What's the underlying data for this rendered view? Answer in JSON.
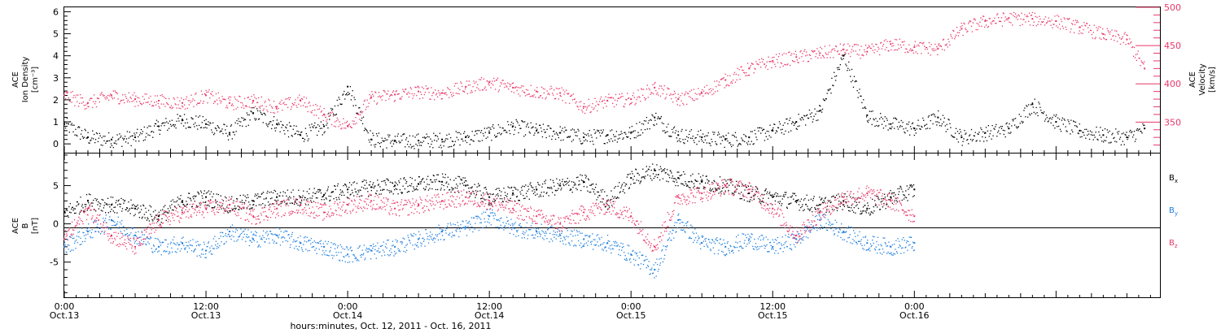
{
  "colors": {
    "black": "#000000",
    "blue": "#1f7fe0",
    "red": "#e8386a"
  },
  "chart_data": [
    {
      "type": "scatter",
      "panel": "top",
      "ylabel_lines": [
        "ACE",
        "Ion Density",
        "[cm⁻³]"
      ],
      "ylim": [
        -0.4,
        6.2
      ],
      "yticks": [
        0,
        1,
        2,
        3,
        4,
        5,
        6
      ],
      "y2label_lines": [
        "ACE",
        "Velocity",
        "[km/s]"
      ],
      "y2lim": [
        310,
        500
      ],
      "y2ticks": [
        350,
        400,
        450,
        500
      ],
      "xlim": [
        0,
        92.8
      ],
      "series": [
        {
          "color": "black",
          "axis": "left",
          "x": [
            0,
            2,
            4,
            6,
            8,
            10,
            12,
            14,
            16,
            18,
            20,
            22,
            24,
            26,
            28,
            30,
            32,
            34,
            36,
            38,
            40,
            42,
            44,
            46,
            48,
            50,
            52,
            54,
            56,
            58,
            60,
            62,
            64,
            66,
            68,
            70,
            72,
            74,
            76,
            78,
            80,
            82,
            84,
            86,
            88,
            90,
            91.5
          ],
          "y": [
            0.9,
            0.3,
            0.2,
            0.3,
            0.8,
            1.1,
            0.9,
            0.5,
            1.4,
            0.9,
            0.4,
            0.8,
            2.6,
            0.2,
            0.15,
            0.15,
            0.2,
            0.3,
            0.5,
            0.8,
            0.6,
            0.5,
            0.3,
            0.4,
            0.5,
            1.2,
            0.4,
            0.3,
            0.2,
            0.3,
            0.6,
            1.0,
            1.5,
            4.0,
            1.3,
            0.9,
            0.7,
            1.2,
            0.3,
            0.5,
            0.7,
            1.8,
            1.0,
            0.6,
            0.4,
            0.3,
            0.7
          ]
        },
        {
          "color": "red",
          "axis": "right",
          "x": [
            0,
            2,
            4,
            6,
            8,
            10,
            12,
            14,
            16,
            18,
            20,
            22,
            24,
            26,
            28,
            30,
            32,
            34,
            36,
            38,
            40,
            42,
            44,
            46,
            48,
            50,
            52,
            54,
            56,
            58,
            60,
            62,
            64,
            66,
            68,
            70,
            72,
            74,
            76,
            78,
            80,
            82,
            84,
            86,
            88,
            90,
            91.5
          ],
          "y": [
            385,
            375,
            385,
            380,
            378,
            375,
            385,
            375,
            378,
            370,
            378,
            360,
            345,
            382,
            386,
            390,
            388,
            396,
            402,
            395,
            390,
            388,
            370,
            378,
            380,
            395,
            380,
            388,
            405,
            420,
            430,
            435,
            440,
            445,
            442,
            452,
            448,
            446,
            472,
            482,
            486,
            485,
            482,
            474,
            465,
            458,
            420
          ]
        }
      ]
    },
    {
      "type": "scatter",
      "panel": "bottom",
      "ylabel_lines": [
        "ACE",
        "B",
        "[nT]"
      ],
      "ylim": [
        -9.6,
        9.2
      ],
      "yticks": [
        -5,
        0,
        5
      ],
      "xlim": [
        0,
        92.8
      ],
      "xticks": [
        {
          "x": 0,
          "lines": [
            "0:00",
            "Oct.13"
          ]
        },
        {
          "x": 12,
          "lines": [
            "12:00",
            "Oct.13"
          ]
        },
        {
          "x": 24,
          "lines": [
            "0:00",
            "Oct.14"
          ]
        },
        {
          "x": 36,
          "lines": [
            "12:00",
            "Oct.14"
          ]
        },
        {
          "x": 48,
          "lines": [
            "0:00",
            "Oct.15"
          ]
        },
        {
          "x": 60,
          "lines": [
            "12:00",
            "Oct.15"
          ]
        },
        {
          "x": 72,
          "lines": [
            "0:00",
            "Oct.16"
          ]
        }
      ],
      "xlabel": "hours:minutes, Oct. 12, 2011 - Oct. 16, 2011",
      "legend": [
        {
          "base": "B",
          "sub": "x",
          "color": "black"
        },
        {
          "base": "B",
          "sub": "y",
          "color": "blue"
        },
        {
          "base": "B",
          "sub": "z",
          "color": "red"
        }
      ],
      "series": [
        {
          "color": "black",
          "x": [
            0,
            2,
            4,
            6,
            8,
            10,
            12,
            14,
            16,
            18,
            20,
            22,
            24,
            26,
            28,
            30,
            32,
            34,
            36,
            38,
            40,
            42,
            44,
            46,
            48,
            50,
            52,
            54,
            56,
            58,
            60,
            62,
            64,
            66,
            68,
            70,
            72
          ],
          "y": [
            1.5,
            3.0,
            2.5,
            2.0,
            1.0,
            3.0,
            3.5,
            2.5,
            3.0,
            3.5,
            3.5,
            3.8,
            4.5,
            4.8,
            5.0,
            5.2,
            5.5,
            5.0,
            3.5,
            4.0,
            4.5,
            5.0,
            5.5,
            3.0,
            6.0,
            7.0,
            6.0,
            5.5,
            5.0,
            4.0,
            3.5,
            3.0,
            2.5,
            3.0,
            2.0,
            3.5,
            4.5
          ]
        },
        {
          "color": "blue",
          "x": [
            0,
            2,
            4,
            6,
            8,
            10,
            12,
            14,
            16,
            18,
            20,
            22,
            24,
            26,
            28,
            30,
            32,
            34,
            36,
            38,
            40,
            42,
            44,
            46,
            48,
            50,
            52,
            54,
            56,
            58,
            60,
            62,
            64,
            66,
            68,
            70,
            72
          ],
          "y": [
            -3.0,
            -1.0,
            0.5,
            -1.5,
            -3.0,
            -2.5,
            -3.5,
            -1.0,
            -2.0,
            -1.5,
            -2.5,
            -3.0,
            -4.0,
            -3.5,
            -3.0,
            -2.0,
            -1.0,
            -0.5,
            1.0,
            -0.5,
            -1.0,
            -1.5,
            -2.0,
            -2.5,
            -4.0,
            -6.0,
            0.5,
            -2.5,
            -3.0,
            -2.0,
            -3.0,
            -2.0,
            0.5,
            -1.0,
            -2.5,
            -3.0,
            -2.5
          ]
        },
        {
          "color": "red",
          "x": [
            0,
            2,
            4,
            6,
            8,
            10,
            12,
            14,
            16,
            18,
            20,
            22,
            24,
            26,
            28,
            30,
            32,
            34,
            36,
            38,
            40,
            42,
            44,
            46,
            48,
            50,
            52,
            54,
            56,
            58,
            60,
            62,
            64,
            66,
            68,
            70,
            72
          ],
          "y": [
            -2.0,
            2.0,
            -1.5,
            -3.0,
            0.5,
            1.5,
            2.0,
            2.5,
            1.0,
            2.0,
            2.5,
            1.5,
            2.5,
            3.0,
            2.0,
            2.5,
            3.0,
            3.5,
            3.0,
            2.0,
            1.0,
            0.0,
            1.5,
            2.5,
            1.0,
            -3.0,
            3.5,
            4.0,
            5.0,
            4.5,
            2.0,
            -1.5,
            1.5,
            3.5,
            4.0,
            3.0,
            1.0
          ]
        }
      ]
    }
  ]
}
